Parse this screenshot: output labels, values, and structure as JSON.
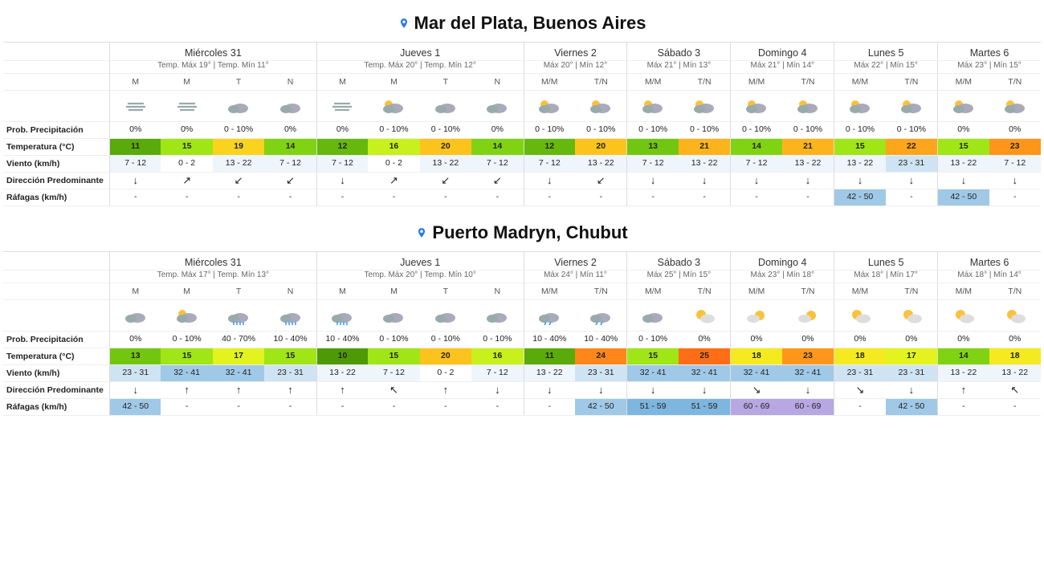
{
  "tempColors": {
    "10": "#4e9a06",
    "11": "#5aaa0a",
    "12": "#66b80d",
    "13": "#73c60f",
    "14": "#80d312",
    "15": "#a0e516",
    "16": "#c8f01a",
    "17": "#e2f31d",
    "18": "#f5ea1f",
    "19": "#f9d31e",
    "20": "#fcc31d",
    "21": "#fdb41c",
    "22": "#fea51b",
    "23": "#ff961a",
    "24": "#ff8719",
    "25": "#ff6e16"
  },
  "windColors": {
    "n": "#ffffff",
    "l": "#eef5fb",
    "m": "#cfe4f3",
    "h": "#9fc9e7"
  },
  "gustColors": {
    "-": "#ffffff",
    "42 - 50": "#9fc9e7",
    "51 - 59": "#7db6de",
    "60 - 69": "#b7a7e2"
  },
  "arrows": {
    "N": "↑",
    "NE": "↗",
    "E": "→",
    "SE": "↘",
    "S": "↓",
    "SW": "↙",
    "W": "←",
    "NW": "↖"
  },
  "rowLabels": {
    "precip": "Prob. Precipitación",
    "temp": "Temperatura (°C)",
    "wind": "Viento (km/h)",
    "dir": "Dirección Predominante",
    "gust": "Ráfagas (km/h)"
  },
  "locations": [
    {
      "title": "Mar del Plata, Buenos Aires",
      "days": [
        {
          "name": "Miércoles 31",
          "sub": "Temp. Máx 19° | Temp. Mín 11°",
          "span": 4,
          "slots": [
            {
              "h": "M",
              "icon": "fog",
              "precip": "0%",
              "temp": 11,
              "wind": "7 - 12",
              "wlev": "l",
              "dir": "S",
              "gust": "-"
            },
            {
              "h": "M",
              "icon": "fog",
              "precip": "0%",
              "temp": 15,
              "wind": "0 - 2",
              "wlev": "n",
              "dir": "NE",
              "gust": "-"
            },
            {
              "h": "T",
              "icon": "cloud",
              "precip": "0 - 10%",
              "temp": 19,
              "wind": "13 - 22",
              "wlev": "l",
              "dir": "SW",
              "gust": "-"
            },
            {
              "h": "N",
              "icon": "cloud",
              "precip": "0%",
              "temp": 14,
              "wind": "7 - 12",
              "wlev": "l",
              "dir": "SW",
              "gust": "-"
            }
          ]
        },
        {
          "name": "Jueves 1",
          "sub": "Temp. Máx 20° | Temp. Mín 12°",
          "span": 4,
          "slots": [
            {
              "h": "M",
              "icon": "fog",
              "precip": "0%",
              "temp": 12,
              "wind": "7 - 12",
              "wlev": "l",
              "dir": "S",
              "gust": "-"
            },
            {
              "h": "M",
              "icon": "partly",
              "precip": "0 - 10%",
              "temp": 16,
              "wind": "0 - 2",
              "wlev": "n",
              "dir": "NE",
              "gust": "-"
            },
            {
              "h": "T",
              "icon": "cloud",
              "precip": "0 - 10%",
              "temp": 20,
              "wind": "13 - 22",
              "wlev": "l",
              "dir": "SW",
              "gust": "-"
            },
            {
              "h": "N",
              "icon": "cloud",
              "precip": "0%",
              "temp": 14,
              "wind": "7 - 12",
              "wlev": "l",
              "dir": "SW",
              "gust": "-"
            }
          ]
        },
        {
          "name": "Viernes 2",
          "sub": "Máx 20° | Mín 12°",
          "span": 2,
          "slots": [
            {
              "h": "M/M",
              "icon": "partly",
              "precip": "0 - 10%",
              "temp": 12,
              "wind": "7 - 12",
              "wlev": "l",
              "dir": "S",
              "gust": "-"
            },
            {
              "h": "T/N",
              "icon": "partly",
              "precip": "0 - 10%",
              "temp": 20,
              "wind": "13 - 22",
              "wlev": "l",
              "dir": "SW",
              "gust": "-"
            }
          ]
        },
        {
          "name": "Sábado 3",
          "sub": "Máx 21° | Mín 13°",
          "span": 2,
          "slots": [
            {
              "h": "M/M",
              "icon": "partly",
              "precip": "0 - 10%",
              "temp": 13,
              "wind": "7 - 12",
              "wlev": "l",
              "dir": "S",
              "gust": "-"
            },
            {
              "h": "T/N",
              "icon": "partly",
              "precip": "0 - 10%",
              "temp": 21,
              "wind": "13 - 22",
              "wlev": "l",
              "dir": "S",
              "gust": "-"
            }
          ]
        },
        {
          "name": "Domingo 4",
          "sub": "Máx 21° | Mín 14°",
          "span": 2,
          "slots": [
            {
              "h": "M/M",
              "icon": "partly",
              "precip": "0 - 10%",
              "temp": 14,
              "wind": "7 - 12",
              "wlev": "l",
              "dir": "S",
              "gust": "-"
            },
            {
              "h": "T/N",
              "icon": "partly",
              "precip": "0 - 10%",
              "temp": 21,
              "wind": "13 - 22",
              "wlev": "l",
              "dir": "S",
              "gust": "-"
            }
          ]
        },
        {
          "name": "Lunes 5",
          "sub": "Máx 22° | Mín 15°",
          "span": 2,
          "slots": [
            {
              "h": "M/M",
              "icon": "partly",
              "precip": "0 - 10%",
              "temp": 15,
              "wind": "13 - 22",
              "wlev": "l",
              "dir": "S",
              "gust": "42 - 50"
            },
            {
              "h": "T/N",
              "icon": "partly",
              "precip": "0 - 10%",
              "temp": 22,
              "wind": "23 - 31",
              "wlev": "m",
              "dir": "S",
              "gust": "-"
            }
          ]
        },
        {
          "name": "Martes 6",
          "sub": "Máx 23° | Mín 15°",
          "span": 2,
          "slots": [
            {
              "h": "M/M",
              "icon": "partly",
              "precip": "0%",
              "temp": 15,
              "wind": "13 - 22",
              "wlev": "l",
              "dir": "S",
              "gust": "42 - 50"
            },
            {
              "h": "T/N",
              "icon": "partly",
              "precip": "0%",
              "temp": 23,
              "wind": "7 - 12",
              "wlev": "l",
              "dir": "S",
              "gust": "-"
            }
          ]
        }
      ]
    },
    {
      "title": "Puerto Madryn, Chubut",
      "days": [
        {
          "name": "Miércoles 31",
          "sub": "Temp. Máx 17° | Temp. Mín 13°",
          "span": 4,
          "slots": [
            {
              "h": "M",
              "icon": "cloud",
              "precip": "0%",
              "temp": 13,
              "wind": "23 - 31",
              "wlev": "m",
              "dir": "S",
              "gust": "42 - 50"
            },
            {
              "h": "M",
              "icon": "partly",
              "precip": "0 - 10%",
              "temp": 15,
              "wind": "32 - 41",
              "wlev": "h",
              "dir": "N",
              "gust": "-"
            },
            {
              "h": "T",
              "icon": "rain",
              "precip": "40 - 70%",
              "temp": 17,
              "wind": "32 - 41",
              "wlev": "h",
              "dir": "N",
              "gust": "-"
            },
            {
              "h": "N",
              "icon": "rain",
              "precip": "10 - 40%",
              "temp": 15,
              "wind": "23 - 31",
              "wlev": "m",
              "dir": "N",
              "gust": "-"
            }
          ]
        },
        {
          "name": "Jueves 1",
          "sub": "Temp. Máx 20° | Temp. Mín 10°",
          "span": 4,
          "slots": [
            {
              "h": "M",
              "icon": "rain",
              "precip": "10 - 40%",
              "temp": 10,
              "wind": "13 - 22",
              "wlev": "l",
              "dir": "N",
              "gust": "-"
            },
            {
              "h": "M",
              "icon": "cloud",
              "precip": "0 - 10%",
              "temp": 15,
              "wind": "7 - 12",
              "wlev": "l",
              "dir": "NW",
              "gust": "-"
            },
            {
              "h": "T",
              "icon": "cloud",
              "precip": "0 - 10%",
              "temp": 20,
              "wind": "0 - 2",
              "wlev": "n",
              "dir": "N",
              "gust": "-"
            },
            {
              "h": "N",
              "icon": "cloud",
              "precip": "0 - 10%",
              "temp": 16,
              "wind": "7 - 12",
              "wlev": "l",
              "dir": "S",
              "gust": "-"
            }
          ]
        },
        {
          "name": "Viernes 2",
          "sub": "Máx 24° | Mín 11°",
          "span": 2,
          "slots": [
            {
              "h": "M/M",
              "icon": "shower",
              "precip": "10 - 40%",
              "temp": 11,
              "wind": "13 - 22",
              "wlev": "l",
              "dir": "S",
              "gust": "-"
            },
            {
              "h": "T/N",
              "icon": "shower",
              "precip": "10 - 40%",
              "temp": 24,
              "wind": "23 - 31",
              "wlev": "m",
              "dir": "S",
              "gust": "42 - 50"
            }
          ]
        },
        {
          "name": "Sábado 3",
          "sub": "Máx 25° | Mín 15°",
          "span": 2,
          "slots": [
            {
              "h": "M/M",
              "icon": "cloud",
              "precip": "0 - 10%",
              "temp": 15,
              "wind": "32 - 41",
              "wlev": "h",
              "dir": "S",
              "gust": "51 - 59"
            },
            {
              "h": "T/N",
              "icon": "suncloud",
              "precip": "0%",
              "temp": 25,
              "wind": "32 - 41",
              "wlev": "h",
              "dir": "S",
              "gust": "51 - 59"
            }
          ]
        },
        {
          "name": "Domingo 4",
          "sub": "Máx 23° | Mín 18°",
          "span": 2,
          "slots": [
            {
              "h": "M/M",
              "icon": "sunpart",
              "precip": "0%",
              "temp": 18,
              "wind": "32 - 41",
              "wlev": "h",
              "dir": "SE",
              "gust": "60 - 69"
            },
            {
              "h": "T/N",
              "icon": "sunpart",
              "precip": "0%",
              "temp": 23,
              "wind": "32 - 41",
              "wlev": "h",
              "dir": "S",
              "gust": "60 - 69"
            }
          ]
        },
        {
          "name": "Lunes 5",
          "sub": "Máx 18° | Mín 17°",
          "span": 2,
          "slots": [
            {
              "h": "M/M",
              "icon": "suncloud",
              "precip": "0%",
              "temp": 18,
              "wind": "23 - 31",
              "wlev": "m",
              "dir": "SE",
              "gust": "-"
            },
            {
              "h": "T/N",
              "icon": "suncloud",
              "precip": "0%",
              "temp": 17,
              "wind": "23 - 31",
              "wlev": "m",
              "dir": "S",
              "gust": "42 - 50"
            }
          ]
        },
        {
          "name": "Martes 6",
          "sub": "Máx 18° | Mín 14°",
          "span": 2,
          "slots": [
            {
              "h": "M/M",
              "icon": "suncloud",
              "precip": "0%",
              "temp": 14,
              "wind": "13 - 22",
              "wlev": "l",
              "dir": "N",
              "gust": "-"
            },
            {
              "h": "T/N",
              "icon": "suncloud",
              "precip": "0%",
              "temp": 18,
              "wind": "13 - 22",
              "wlev": "l",
              "dir": "NW",
              "gust": "-"
            }
          ]
        }
      ]
    }
  ]
}
